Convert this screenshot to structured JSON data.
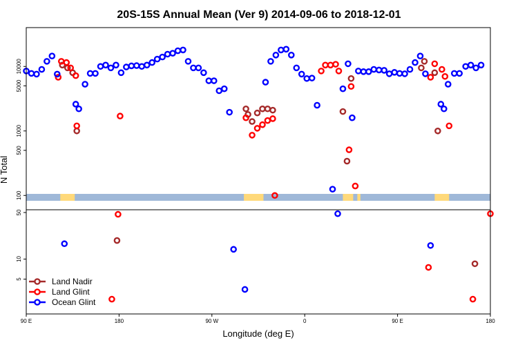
{
  "chart_data": {
    "type": "scatter",
    "title": "20S-15S Annual Mean (Ver 9)   2014-09-06 to 2018-12-01",
    "xlabel": "Longitude (deg E)",
    "ylabel": "N Total",
    "xlim": [
      90,
      540
    ],
    "x_ticks": [
      {
        "x": 90,
        "label": "90 E"
      },
      {
        "x": 180,
        "label": "180"
      },
      {
        "x": 270,
        "label": "90 W"
      },
      {
        "x": 360,
        "label": "0"
      },
      {
        "x": 450,
        "label": "90 E"
      },
      {
        "x": 540,
        "label": "180"
      }
    ],
    "y_scale": "log",
    "upper_panel": {
      "ylim": [
        60,
        40000
      ],
      "y_ticks": [
        {
          "v": 100,
          "label": "100"
        },
        {
          "v": 500,
          "label": "500"
        },
        {
          "v": 1000,
          "label": "1000"
        },
        {
          "v": 5000,
          "label": "5000"
        },
        {
          "v": 10000,
          "label": "10000"
        }
      ]
    },
    "lower_panel": {
      "ylim": [
        1.5,
        55
      ],
      "y_ticks": [
        {
          "v": 5,
          "label": "5"
        },
        {
          "v": 10,
          "label": "10"
        },
        {
          "v": 50,
          "label": "50"
        }
      ]
    },
    "legend": {
      "placement": "bottom-left"
    },
    "series": [
      {
        "name": "Land Nadir",
        "color": "#a52a2a",
        "points": [
          [
            125,
            10500
          ],
          [
            130,
            9500
          ],
          [
            135,
            8000
          ],
          [
            139,
            1000
          ],
          [
            178,
            19
          ],
          [
            303,
            2200
          ],
          [
            305,
            1800
          ],
          [
            309,
            1400
          ],
          [
            314,
            1900
          ],
          [
            319,
            2200
          ],
          [
            324,
            2200
          ],
          [
            329,
            2100
          ],
          [
            364,
            0
          ],
          [
            397,
            2000
          ],
          [
            401,
            340
          ],
          [
            405,
            6500
          ],
          [
            473,
            9500
          ],
          [
            476,
            12000
          ],
          [
            486,
            8000
          ],
          [
            489,
            1000
          ],
          [
            525,
            8.5
          ]
        ]
      },
      {
        "name": "Land Glint",
        "color": "#ff0000",
        "points": [
          [
            121,
            6800
          ],
          [
            124,
            12000
          ],
          [
            129,
            11500
          ],
          [
            133,
            9500
          ],
          [
            138,
            7200
          ],
          [
            139,
            1200
          ],
          [
            173,
            2.5
          ],
          [
            179,
            47
          ],
          [
            181,
            1700
          ],
          [
            303,
            1600
          ],
          [
            309,
            860
          ],
          [
            314,
            1100
          ],
          [
            319,
            1250
          ],
          [
            324,
            1450
          ],
          [
            329,
            1550
          ],
          [
            331,
            100
          ],
          [
            376,
            8500
          ],
          [
            380,
            10500
          ],
          [
            385,
            10500
          ],
          [
            390,
            10800
          ],
          [
            393,
            8500
          ],
          [
            403,
            510
          ],
          [
            405,
            4900
          ],
          [
            409,
            140
          ],
          [
            480,
            7.5
          ],
          [
            482,
            6800
          ],
          [
            486,
            11000
          ],
          [
            493,
            9000
          ],
          [
            496,
            7000
          ],
          [
            500,
            1200
          ],
          [
            523,
            2.5
          ],
          [
            540,
            48
          ]
        ]
      },
      {
        "name": "Ocean Glint",
        "color": "#0000ff",
        "points": [
          [
            90,
            8500
          ],
          [
            95,
            7800
          ],
          [
            100,
            7600
          ],
          [
            105,
            9000
          ],
          [
            110,
            12000
          ],
          [
            115,
            14500
          ],
          [
            120,
            7600
          ],
          [
            127,
            17
          ],
          [
            138,
            2600
          ],
          [
            141,
            2200
          ],
          [
            147,
            5300
          ],
          [
            152,
            7800
          ],
          [
            157,
            7800
          ],
          [
            162,
            10000
          ],
          [
            167,
            10500
          ],
          [
            172,
            9500
          ],
          [
            177,
            10500
          ],
          [
            182,
            8000
          ],
          [
            187,
            9800
          ],
          [
            192,
            10200
          ],
          [
            197,
            10300
          ],
          [
            202,
            10000
          ],
          [
            207,
            10500
          ],
          [
            212,
            11500
          ],
          [
            217,
            13000
          ],
          [
            222,
            14000
          ],
          [
            227,
            15500
          ],
          [
            232,
            16000
          ],
          [
            237,
            17500
          ],
          [
            242,
            18000
          ],
          [
            247,
            12000
          ],
          [
            252,
            9500
          ],
          [
            257,
            9500
          ],
          [
            262,
            8000
          ],
          [
            267,
            6000
          ],
          [
            272,
            6000
          ],
          [
            277,
            4200
          ],
          [
            282,
            4500
          ],
          [
            287,
            1950
          ],
          [
            291,
            14
          ],
          [
            302,
            3.5
          ],
          [
            322,
            5700
          ],
          [
            327,
            12000
          ],
          [
            332,
            15000
          ],
          [
            337,
            18000
          ],
          [
            342,
            18500
          ],
          [
            347,
            15000
          ],
          [
            352,
            9500
          ],
          [
            357,
            7600
          ],
          [
            362,
            6500
          ],
          [
            367,
            6600
          ],
          [
            372,
            2500
          ],
          [
            387,
            125
          ],
          [
            392,
            48
          ],
          [
            397,
            4500
          ],
          [
            402,
            11000
          ],
          [
            406,
            1600
          ],
          [
            412,
            8500
          ],
          [
            417,
            8300
          ],
          [
            422,
            8300
          ],
          [
            427,
            9000
          ],
          [
            432,
            8800
          ],
          [
            437,
            8700
          ],
          [
            442,
            7700
          ],
          [
            447,
            8100
          ],
          [
            452,
            7800
          ],
          [
            457,
            7700
          ],
          [
            462,
            9000
          ],
          [
            467,
            11500
          ],
          [
            472,
            14500
          ],
          [
            477,
            7700
          ],
          [
            482,
            16
          ],
          [
            492,
            2600
          ],
          [
            495,
            2200
          ],
          [
            499,
            5300
          ],
          [
            505,
            7800
          ],
          [
            510,
            7800
          ],
          [
            516,
            10000
          ],
          [
            521,
            10500
          ],
          [
            526,
            9500
          ],
          [
            531,
            10500
          ]
        ]
      }
    ],
    "land_mask_color": "#ffd97a",
    "ocean_mask_color": "#9fb8d8"
  }
}
